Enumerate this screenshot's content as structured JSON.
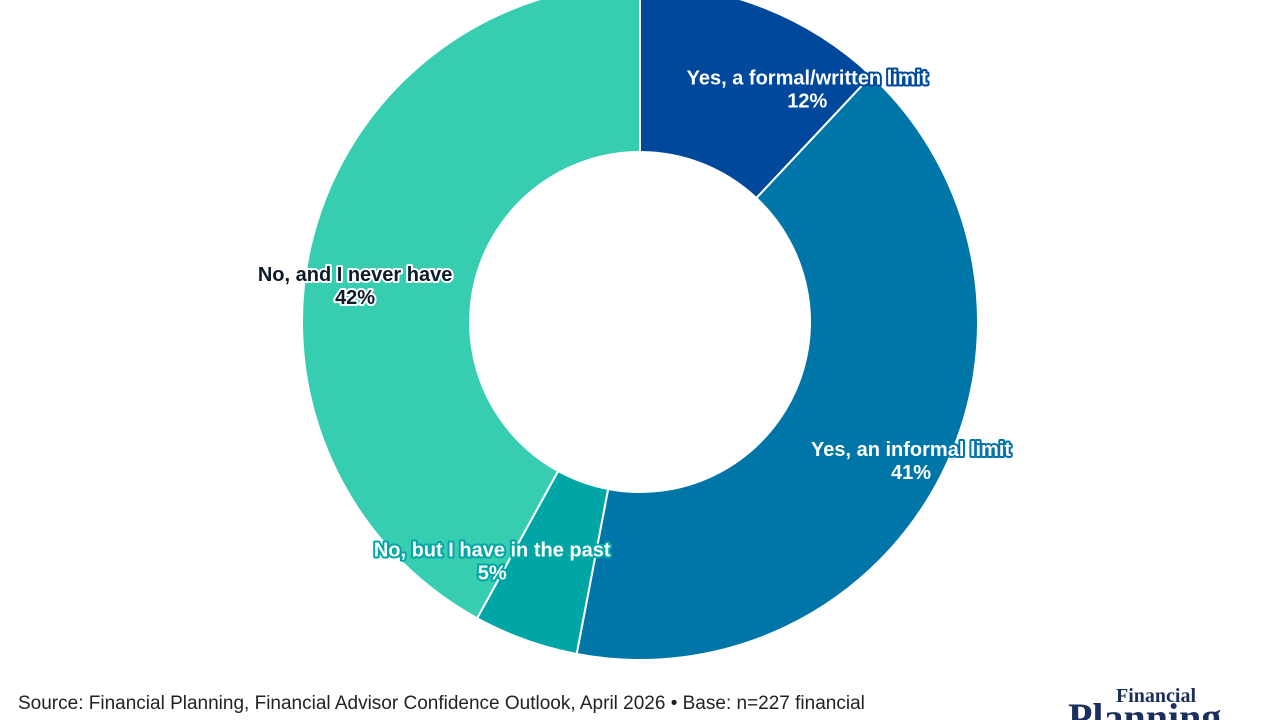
{
  "chart_data": {
    "type": "pie",
    "donut": true,
    "slices": [
      {
        "label": "Yes, a formal/written limit",
        "value": 12,
        "value_label": "12%",
        "color": "#00489c"
      },
      {
        "label": "Yes, an informal limit",
        "value": 41,
        "value_label": "41%",
        "color": "#0075a8"
      },
      {
        "label": "No, but I have in the past",
        "value": 5,
        "value_label": "5%",
        "color": "#00a6a6"
      },
      {
        "label": "No, and I never have",
        "value": 42,
        "value_label": "42%",
        "color": "#36cdb1"
      }
    ]
  },
  "source_note": "Source: Financial Planning, Financial Advisor Confidence Outlook, April 2026 • Base: n=227 financial",
  "logo": {
    "top_word": "Financial",
    "main_word": "Planning"
  }
}
